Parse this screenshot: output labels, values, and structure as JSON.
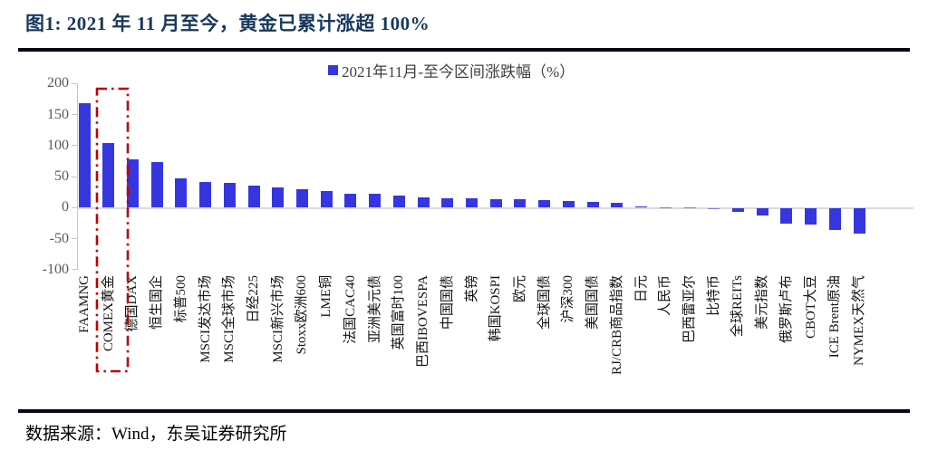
{
  "header": {
    "title": "图1:  2021 年 11 月至今，黄金已累计涨超 100%"
  },
  "chart_data": {
    "type": "bar",
    "title": "",
    "legend": [
      "2021年11月-至今区间涨跌幅（%）"
    ],
    "legend_position": "top-center",
    "ylabel": "",
    "xlabel": "",
    "ylim": [
      -100,
      200
    ],
    "yticks": [
      200,
      150,
      100,
      50,
      0,
      -50,
      -100
    ],
    "grid": false,
    "categories": [
      "FAAMNG",
      "COMEX黄金",
      "德国DAX",
      "恒生国企",
      "标普500",
      "MSCI发达市场",
      "MSCI全球市场",
      "日经225",
      "MSCI新兴市场",
      "Stoxx欧洲600",
      "LME铜",
      "法国CAC40",
      "亚洲美元债",
      "英国富时100",
      "巴西IBOVESPA",
      "中国国债",
      "英镑",
      "韩国KOSPI",
      "欧元",
      "全球国债",
      "沪深300",
      "美国国债",
      "RJ/CRB商品指数",
      "日元",
      "人民币",
      "巴西雷亚尔",
      "比特币",
      "全球REITs",
      "美元指数",
      "俄罗斯卢布",
      "CBOT大豆",
      "ICE Brent原油",
      "NYMEX天然气"
    ],
    "values": [
      169,
      104,
      78,
      73,
      47,
      42,
      40,
      36,
      33,
      30,
      27,
      23,
      22,
      20,
      16,
      15,
      15,
      14,
      14,
      12,
      10,
      9,
      8,
      2,
      1,
      0.4,
      -0.4,
      -6,
      -11,
      -25,
      -26,
      -34,
      -41
    ],
    "highlight": {
      "category": "COMEX黄金",
      "index": 1,
      "style": "red dash-dot rectangle around bar and label",
      "color": "#c00000"
    },
    "colors": {
      "bar": "#3636e0",
      "title": "#17375e",
      "axis_text": "#595959",
      "category_text": "#141414"
    }
  },
  "footer": {
    "source": "数据来源：Wind，东吴证券研究所"
  }
}
